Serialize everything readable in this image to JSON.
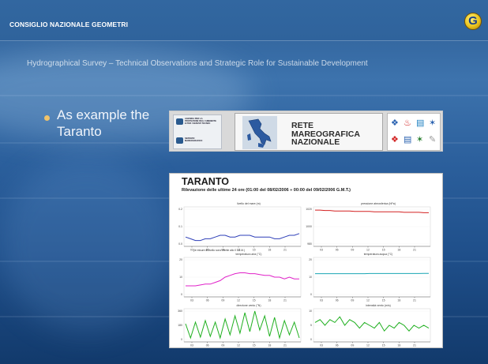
{
  "header": {
    "org_name": "CONSIGLIO NAZIONALE GEOMETRI",
    "logo_letter": "G"
  },
  "subtitle": "Hydrographical Survey – Technical Observations and Strategic Role for Sustainable Development",
  "bullet": {
    "text": "As example the",
    "text_line2": "Taranto"
  },
  "network_panel": {
    "agency_lines_1": [
      "AGENZIA PER LA",
      "PROTEZIONE DELL'AMBIENTE",
      "E PER I SERVIZI TECNICI"
    ],
    "agency_lines_2": [
      "SERVIZIO",
      "MAREOGRAFICO"
    ],
    "title_lines": [
      "RETE",
      "MAREOGRAFICA",
      "NAZIONALE"
    ],
    "icons": [
      "wind-icon",
      "thermometer-icon",
      "sea-level-icon",
      "direction-icon",
      "rain-icon",
      "pressure-icon",
      "temperature-icon",
      "anemometer-icon"
    ]
  },
  "report": {
    "title": "TARANTO",
    "subtitle": "Rilevazione delle ultime 24 ore (01:00 del 08/02/2006 ÷ 00:00 del 09/02/2006 G.M.T.)",
    "note": "(le misure di livello sono riferite allo 0 I.G.M.)",
    "x_ticks": [
      "03",
      "06",
      "09",
      "12",
      "15",
      "18",
      "21"
    ]
  },
  "chart_data": [
    {
      "type": "line",
      "title": "livello del mare (m)",
      "color": "#2e3fb8",
      "yticks": [
        "0.2",
        "0.1",
        "0.0"
      ],
      "ylim": [
        0,
        0.2
      ],
      "x": [
        1,
        2,
        3,
        4,
        5,
        6,
        7,
        8,
        9,
        10,
        11,
        12,
        13,
        14,
        15,
        16,
        17,
        18,
        19,
        20,
        21,
        22,
        23,
        24
      ],
      "values": [
        0.04,
        0.03,
        0.02,
        0.02,
        0.03,
        0.03,
        0.04,
        0.05,
        0.05,
        0.04,
        0.04,
        0.05,
        0.05,
        0.05,
        0.04,
        0.04,
        0.04,
        0.04,
        0.03,
        0.03,
        0.04,
        0.05,
        0.05,
        0.06
      ]
    },
    {
      "type": "line",
      "title": "pressione atmosferica (hPa)",
      "color": "#d42020",
      "yticks": [
        "1020",
        "1000",
        "980"
      ],
      "ylim": [
        980,
        1020
      ],
      "x": [
        1,
        2,
        3,
        4,
        5,
        6,
        7,
        8,
        9,
        10,
        11,
        12,
        13,
        14,
        15,
        16,
        17,
        18,
        19,
        20,
        21,
        22,
        23,
        24
      ],
      "values": [
        1019,
        1019,
        1018.5,
        1018.5,
        1018,
        1018,
        1018,
        1018,
        1017.5,
        1017.5,
        1017.5,
        1017.5,
        1017,
        1017,
        1017,
        1017,
        1017,
        1017,
        1016.5,
        1016.5,
        1016.5,
        1016.5,
        1016,
        1016
      ]
    },
    {
      "type": "line",
      "title": "temperatura aria (°C)",
      "color": "#e020c8",
      "yticks": [
        "20",
        "10",
        "0"
      ],
      "ylim": [
        0,
        20
      ],
      "x": [
        1,
        2,
        3,
        4,
        5,
        6,
        7,
        8,
        9,
        10,
        11,
        12,
        13,
        14,
        15,
        16,
        17,
        18,
        19,
        20,
        21,
        22,
        23,
        24
      ],
      "values": [
        5,
        5,
        5,
        5.5,
        6,
        6,
        7,
        8,
        10,
        11,
        12,
        12.5,
        12.5,
        12,
        12,
        11.5,
        11,
        11,
        10,
        10,
        9,
        10,
        9,
        9
      ]
    },
    {
      "type": "line",
      "title": "temperatura acqua (°C)",
      "color": "#19a6b4",
      "yticks": [
        "20",
        "10",
        "0"
      ],
      "ylim": [
        0,
        20
      ],
      "x": [
        1,
        2,
        3,
        4,
        5,
        6,
        7,
        8,
        9,
        10,
        11,
        12,
        13,
        14,
        15,
        16,
        17,
        18,
        19,
        20,
        21,
        22,
        23,
        24
      ],
      "values": [
        12,
        12,
        12,
        12,
        12,
        12,
        12,
        12,
        12,
        12,
        12,
        12.1,
        12.1,
        12.1,
        12.1,
        12.1,
        12.1,
        12.1,
        12.1,
        12.1,
        12.1,
        12.1,
        12.2,
        12.2
      ]
    },
    {
      "type": "line",
      "title": "direzione vento (°N)",
      "color": "#20b020",
      "yticks": [
        "360",
        "180",
        "0"
      ],
      "ylim": [
        0,
        360
      ],
      "x": [
        1,
        2,
        3,
        4,
        5,
        6,
        7,
        8,
        9,
        10,
        11,
        12,
        13,
        14,
        15,
        16,
        17,
        18,
        19,
        20,
        21,
        22,
        23,
        24
      ],
      "values": [
        200,
        20,
        220,
        30,
        240,
        40,
        220,
        20,
        260,
        60,
        300,
        80,
        340,
        100,
        360,
        120,
        300,
        40,
        280,
        20,
        240,
        60,
        220,
        20
      ]
    },
    {
      "type": "line",
      "title": "intensità vento (m/s)",
      "color": "#20b020",
      "yticks": [
        "10",
        "5",
        "0"
      ],
      "ylim": [
        0,
        10
      ],
      "x": [
        1,
        2,
        3,
        4,
        5,
        6,
        7,
        8,
        9,
        10,
        11,
        12,
        13,
        14,
        15,
        16,
        17,
        18,
        19,
        20,
        21,
        22,
        23,
        24
      ],
      "values": [
        6,
        7,
        5,
        7,
        6,
        8,
        5,
        7,
        6,
        4,
        6,
        5,
        4,
        6,
        3,
        5,
        4,
        6,
        5,
        3,
        5,
        4,
        5,
        4
      ]
    }
  ]
}
